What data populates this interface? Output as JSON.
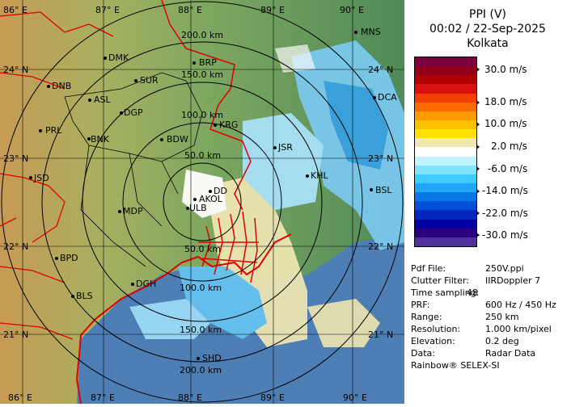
{
  "product": {
    "title": "PPI (V)",
    "datetime": "00:02 / 22-Sep-2025",
    "station": "Kolkata"
  },
  "colorbar": {
    "colors": [
      "#7a0040",
      "#900018",
      "#b00000",
      "#d81010",
      "#f04000",
      "#ff6a00",
      "#ff9a00",
      "#ffc000",
      "#ffe000",
      "#f0e8b0",
      "#ffffff",
      "#c0f4ff",
      "#80e4ff",
      "#40ccff",
      "#20a8f8",
      "#0878e8",
      "#0050d8",
      "#0028c0",
      "#0000a0",
      "#2a0080",
      "#50309a"
    ],
    "labels": [
      "30.0 m/s",
      "18.0 m/s",
      "10.0 m/s",
      "2.0 m/s",
      "-6.0 m/s",
      "-14.0 m/s",
      "-22.0 m/s",
      "-30.0 m/s"
    ]
  },
  "metadata": [
    {
      "key": "Pdf File:",
      "value": "250V.ppi"
    },
    {
      "key": "Clutter Filter:",
      "value": "IIRDoppler 7"
    },
    {
      "key": "Time sampling:",
      "value": "48"
    },
    {
      "key": "PRF:",
      "value": "600 Hz / 450 Hz"
    },
    {
      "key": "Range:",
      "value": "250 km"
    },
    {
      "key": "Resolution:",
      "value": "1.000 km/pixel"
    },
    {
      "key": "Elevation:",
      "value": "0.2 deg"
    },
    {
      "key": "Data:",
      "value": "Radar Data"
    }
  ],
  "credit": "Rainbow® SELEX-SI",
  "map": {
    "lon_labels": [
      "86° E",
      "87° E",
      "88° E",
      "89° E",
      "90° E"
    ],
    "lat_labels": [
      "24° N",
      "23° N",
      "22° N",
      "21° N"
    ],
    "range_rings": [
      "50.0 km",
      "100.0 km",
      "150.0 km",
      "200.0 km"
    ],
    "stations": [
      "MNS",
      "DMK",
      "BRP",
      "DNB",
      "SUR",
      "DCA",
      "ASL",
      "DGP",
      "PRL",
      "BNK",
      "KRG",
      "BDW",
      "JSR",
      "KHL",
      "JSD",
      "BSL",
      "DD",
      "AKOL",
      "ULB",
      "MDP",
      "BPD",
      "DGH",
      "BLS",
      "SHD"
    ]
  }
}
